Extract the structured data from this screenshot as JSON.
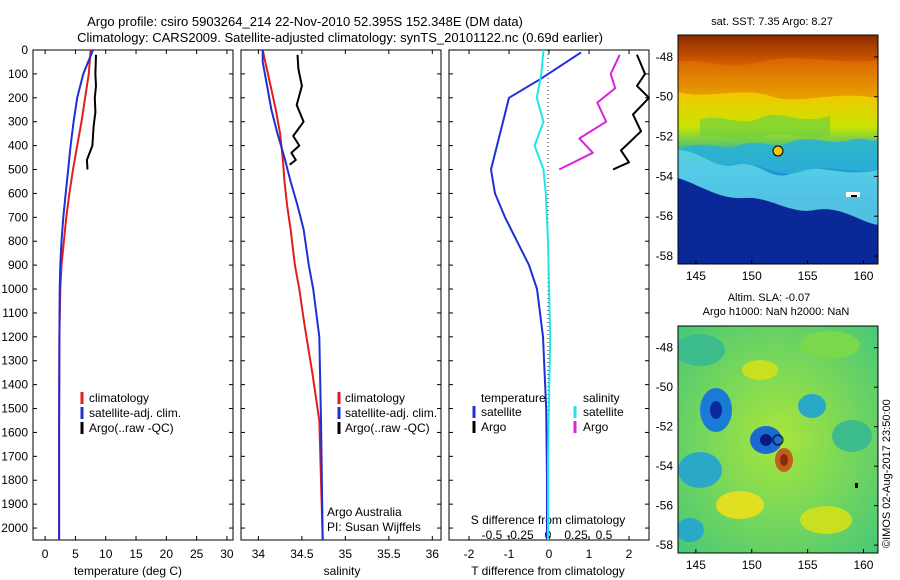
{
  "title": {
    "line1": "Argo profile: csiro 5903264_214 22-Nov-2010 52.395S 152.348E (DM data)",
    "line2": "Climatology: CARS2009. Satellite-adjusted climatology: synTS_20101122.nc (0.69d earlier)"
  },
  "depth_ticks": [
    "0",
    "100",
    "200",
    "300",
    "400",
    "500",
    "600",
    "700",
    "800",
    "900",
    "1000",
    "1100",
    "1200",
    "1300",
    "1400",
    "1500",
    "1600",
    "1700",
    "1800",
    "1900",
    "2000"
  ],
  "panel_temp": {
    "xlabel": "temperature (deg C)",
    "xticks": [
      "0",
      "5",
      "10",
      "15",
      "20",
      "25",
      "30"
    ],
    "legend": [
      "climatology",
      "satellite-adj. clim.",
      "Argo(..raw -QC)"
    ]
  },
  "panel_sal": {
    "xlabel": "salinity",
    "xticks": [
      "34",
      "34.5",
      "35",
      "35.5",
      "36"
    ],
    "legend": [
      "climatology",
      "satellite-adj. clim.",
      "Argo(..raw -QC)"
    ],
    "credit1": "Argo Australia",
    "credit2": "PI: Susan Wijffels"
  },
  "panel_diff": {
    "xlabel": "T difference from climatology",
    "top_label": "S difference from climatology",
    "xticks_T": [
      "-2",
      "-1",
      "0",
      "1",
      "2"
    ],
    "xticks_S": [
      "-0.5",
      "-0.25",
      "0",
      "0.25",
      "0.5"
    ],
    "legend_t_head": "temperature",
    "legend_s_head": "salinity",
    "legend_t": [
      "satellite",
      "Argo"
    ],
    "legend_s": [
      "satellite",
      "Argo"
    ]
  },
  "map_sst": {
    "title": "sat. SST: 7.35 Argo: 8.27",
    "yticks": [
      "-48",
      "-50",
      "-52",
      "-54",
      "-56",
      "-58"
    ],
    "xticks": [
      "145",
      "150",
      "155",
      "160"
    ]
  },
  "map_sla": {
    "title1": "Altim. SLA: -0.07",
    "title2": "Argo h1000: NaN h2000: NaN",
    "yticks": [
      "-48",
      "-50",
      "-52",
      "-54",
      "-56",
      "-58"
    ],
    "xticks": [
      "145",
      "150",
      "155",
      "160"
    ],
    "credit": "©IMOS 02-Aug-2017 23:50:00"
  },
  "colors": {
    "climatology": "#e11d1d",
    "satellite": "#1f2fd6",
    "argo": "#000000",
    "sal_sat": "#22e5e5",
    "sal_argo": "#dd22dd"
  },
  "chart_data": [
    {
      "type": "line",
      "xlabel": "temperature (deg C)",
      "ylabel": "",
      "xlim": [
        -2,
        31
      ],
      "ylim": [
        2050,
        0
      ],
      "series": [
        {
          "name": "climatology",
          "x": [
            7.5,
            7.2,
            6.6,
            6.0,
            5.3,
            4.6,
            4.0,
            3.5,
            3.1,
            2.7,
            2.5,
            2.35,
            2.3,
            2.3
          ],
          "y": [
            0,
            100,
            200,
            300,
            400,
            500,
            600,
            700,
            800,
            900,
            1000,
            1200,
            1600,
            2050
          ]
        },
        {
          "name": "satellite-adj. clim.",
          "x": [
            7.9,
            6.3,
            5.3,
            4.7,
            4.2,
            3.8,
            3.4,
            3.0,
            2.7,
            2.5,
            2.4,
            2.35,
            2.3,
            2.3
          ],
          "y": [
            0,
            100,
            200,
            300,
            400,
            500,
            600,
            700,
            800,
            900,
            1000,
            1200,
            1600,
            2050
          ]
        },
        {
          "name": "Argo(..raw -QC)",
          "x": [
            8.4,
            8.3,
            8.4,
            8.2,
            8.3,
            8.0,
            7.8,
            6.9,
            7.0
          ],
          "y": [
            20,
            100,
            150,
            200,
            260,
            320,
            400,
            460,
            500
          ]
        }
      ]
    },
    {
      "type": "line",
      "xlabel": "salinity",
      "ylabel": "",
      "xlim": [
        33.8,
        36.1
      ],
      "ylim": [
        2050,
        0
      ],
      "series": [
        {
          "name": "climatology",
          "x": [
            34.05,
            34.08,
            34.14,
            34.2,
            34.25,
            34.28,
            34.3,
            34.33,
            34.37,
            34.42,
            34.47,
            34.53,
            34.62,
            34.7,
            34.72,
            34.74
          ],
          "y": [
            0,
            50,
            150,
            250,
            350,
            450,
            550,
            650,
            750,
            900,
            1000,
            1150,
            1350,
            1550,
            1800,
            2050
          ]
        },
        {
          "name": "satellite-adj. clim.",
          "x": [
            34.05,
            34.05,
            34.1,
            34.15,
            34.22,
            34.3,
            34.37,
            34.45,
            34.52,
            34.58,
            34.63,
            34.7,
            34.72,
            34.74
          ],
          "y": [
            0,
            50,
            150,
            250,
            350,
            450,
            550,
            650,
            750,
            900,
            1000,
            1200,
            1550,
            2050
          ]
        },
        {
          "name": "Argo(..raw -QC)",
          "x": [
            34.45,
            34.46,
            34.5,
            34.44,
            34.52,
            34.4,
            34.47,
            34.38,
            34.43,
            34.36
          ],
          "y": [
            20,
            80,
            150,
            230,
            300,
            360,
            400,
            430,
            460,
            480
          ]
        }
      ]
    },
    {
      "type": "line",
      "xlabel": "T difference from climatology",
      "top_label": "S difference from climatology",
      "ylabel": "",
      "xlim": [
        -2.5,
        2.5
      ],
      "ylim": [
        2050,
        0
      ],
      "series": [
        {
          "name": "temperature satellite",
          "x": [
            0.8,
            -0.2,
            -1.0,
            -1.15,
            -1.3,
            -1.45,
            -1.35,
            -1.1,
            -0.8,
            -0.5,
            -0.3,
            -0.15,
            -0.07,
            -0.05,
            -0.05
          ],
          "y": [
            10,
            120,
            200,
            300,
            400,
            500,
            600,
            700,
            800,
            900,
            1000,
            1200,
            1500,
            1800,
            2050
          ]
        },
        {
          "name": "salinity satellite",
          "x": [
            -0.02,
            -0.03,
            -0.05,
            -0.02,
            -0.06,
            -0.02,
            -0.01,
            0.0,
            0.01,
            0.0,
            0.0
          ],
          "y": [
            0,
            100,
            200,
            300,
            400,
            500,
            600,
            800,
            1200,
            1700,
            2050
          ]
        },
        {
          "name": "temperature Argo",
          "x": [
            2.2,
            2.4,
            2.2,
            2.5,
            2.1,
            2.3,
            1.8,
            2.0,
            1.6
          ],
          "y": [
            20,
            100,
            150,
            200,
            270,
            340,
            420,
            470,
            500
          ]
        },
        {
          "name": "salinity Argo",
          "x": [
            0.32,
            0.28,
            0.3,
            0.22,
            0.26,
            0.14,
            0.2,
            0.05
          ],
          "y": [
            20,
            100,
            160,
            220,
            300,
            370,
            430,
            500
          ]
        }
      ]
    }
  ]
}
